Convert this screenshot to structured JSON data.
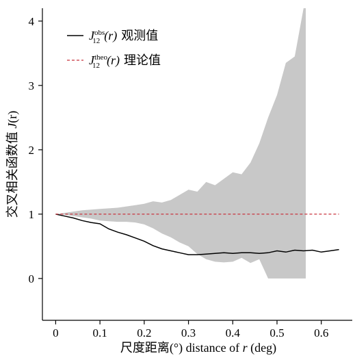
{
  "chart_data": {
    "type": "line",
    "xlabel_prefix": "尺度距离(°) distance of ",
    "xlabel_var": "r",
    "xlabel_suffix": " (deg)",
    "ylabel_prefix": "交叉相关函数值 ",
    "ylabel_var": "J",
    "ylabel_paren": "(r)",
    "xlim": [
      -0.03,
      0.67
    ],
    "ylim": [
      -0.65,
      4.2
    ],
    "xticks": [
      0,
      0.1,
      0.2,
      0.3,
      0.4,
      0.5,
      0.6
    ],
    "xtick_labels": [
      "0",
      "0.1",
      "0.2",
      "0.3",
      "0.4",
      "0.5",
      "0.6"
    ],
    "yticks": [
      0,
      1,
      2,
      3,
      4
    ],
    "ytick_labels": [
      "0",
      "1",
      "2",
      "3",
      "4"
    ],
    "legend_position": "top-left",
    "series": [
      {
        "name_main": "J",
        "name_sub": "12",
        "name_sup": "obs",
        "name_arg": "(r)",
        "name_cn": "观测值",
        "color": "#000000",
        "style": "solid",
        "x": [
          0,
          0.02,
          0.04,
          0.06,
          0.08,
          0.1,
          0.12,
          0.14,
          0.16,
          0.18,
          0.2,
          0.22,
          0.24,
          0.26,
          0.28,
          0.3,
          0.32,
          0.34,
          0.36,
          0.38,
          0.4,
          0.42,
          0.44,
          0.46,
          0.48,
          0.5,
          0.52,
          0.54,
          0.56,
          0.58,
          0.6,
          0.62,
          0.64
        ],
        "y": [
          1.0,
          0.97,
          0.94,
          0.9,
          0.87,
          0.85,
          0.77,
          0.72,
          0.68,
          0.63,
          0.58,
          0.51,
          0.46,
          0.43,
          0.4,
          0.37,
          0.37,
          0.38,
          0.39,
          0.4,
          0.39,
          0.4,
          0.4,
          0.39,
          0.4,
          0.43,
          0.41,
          0.44,
          0.43,
          0.44,
          0.41,
          0.43,
          0.45
        ]
      },
      {
        "name_main": "J",
        "name_sub": "12",
        "name_sup": "theo",
        "name_arg": "(r)",
        "name_cn": "理论值",
        "color": "#c8323c",
        "style": "dashed",
        "x": [
          0,
          0.64
        ],
        "y": [
          1.0,
          1.0
        ]
      }
    ],
    "envelope": {
      "color": "#c8c8c8",
      "x": [
        0,
        0.02,
        0.04,
        0.06,
        0.08,
        0.1,
        0.12,
        0.14,
        0.16,
        0.18,
        0.2,
        0.22,
        0.24,
        0.26,
        0.28,
        0.3,
        0.32,
        0.34,
        0.36,
        0.38,
        0.4,
        0.42,
        0.44,
        0.46,
        0.48,
        0.5,
        0.52,
        0.54,
        0.56,
        0.565
      ],
      "upper": [
        1.0,
        1.02,
        1.04,
        1.06,
        1.07,
        1.08,
        1.09,
        1.1,
        1.12,
        1.14,
        1.16,
        1.2,
        1.18,
        1.22,
        1.3,
        1.38,
        1.35,
        1.5,
        1.45,
        1.55,
        1.65,
        1.62,
        1.8,
        2.1,
        2.5,
        2.85,
        3.35,
        3.45,
        4.2,
        4.2
      ],
      "lower": [
        1.0,
        0.99,
        0.97,
        0.95,
        0.93,
        0.9,
        0.89,
        0.88,
        0.88,
        0.87,
        0.84,
        0.78,
        0.7,
        0.64,
        0.56,
        0.5,
        0.38,
        0.3,
        0.26,
        0.25,
        0.26,
        0.32,
        0.24,
        0.3,
        0.0,
        0.0,
        0.0,
        0.0,
        0.0,
        0.0
      ]
    }
  }
}
